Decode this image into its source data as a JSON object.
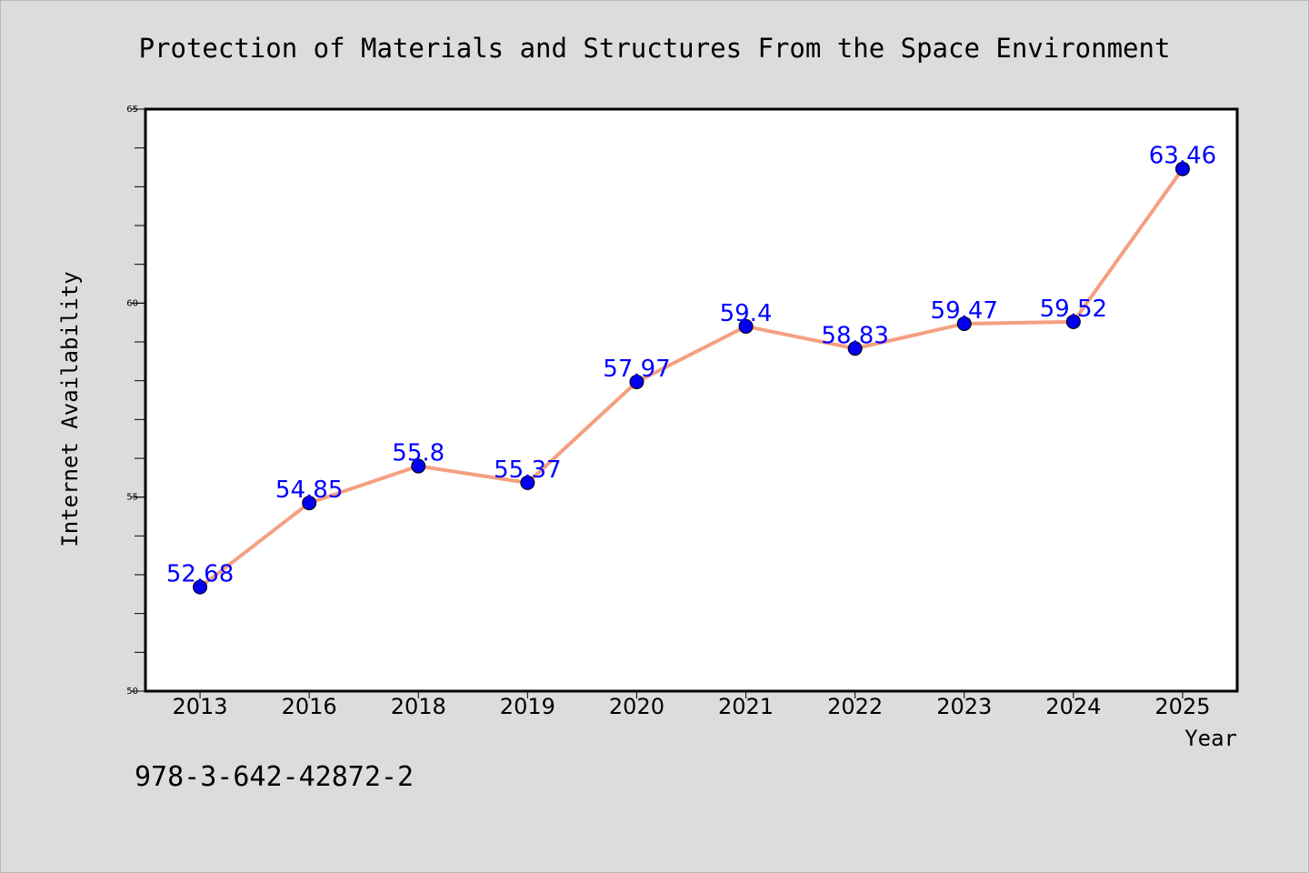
{
  "colors": {
    "background": "#dcdcdc",
    "plot_background": "#ffffff",
    "line": "#f4a080",
    "marker": "#0000ee",
    "data_label": "#0000ff"
  },
  "footer_text": "978-3-642-42872-2",
  "chart_data": {
    "type": "line",
    "title": "Protection of Materials and Structures From the Space Environment",
    "xlabel": "Year",
    "ylabel": "Internet Availability",
    "categories": [
      "2013",
      "2016",
      "2018",
      "2019",
      "2020",
      "2021",
      "2022",
      "2023",
      "2024",
      "2025"
    ],
    "series": [
      {
        "values": [
          52.68,
          54.85,
          55.8,
          55.37,
          57.97,
          59.4,
          58.83,
          59.47,
          59.52,
          63.46
        ],
        "data_labels": [
          "52.68",
          "54.85",
          "55.8",
          "55.37",
          "57.97",
          "59.4",
          "58.83",
          "59.47",
          "59.52",
          "63.46"
        ]
      }
    ],
    "ylim": [
      50,
      65
    ],
    "yticks": [
      50,
      55,
      60,
      65
    ],
    "ytick_labels": [
      "50",
      "55",
      "60",
      "65"
    ],
    "y_minor_step": 1,
    "grid": false,
    "legend": "none"
  }
}
